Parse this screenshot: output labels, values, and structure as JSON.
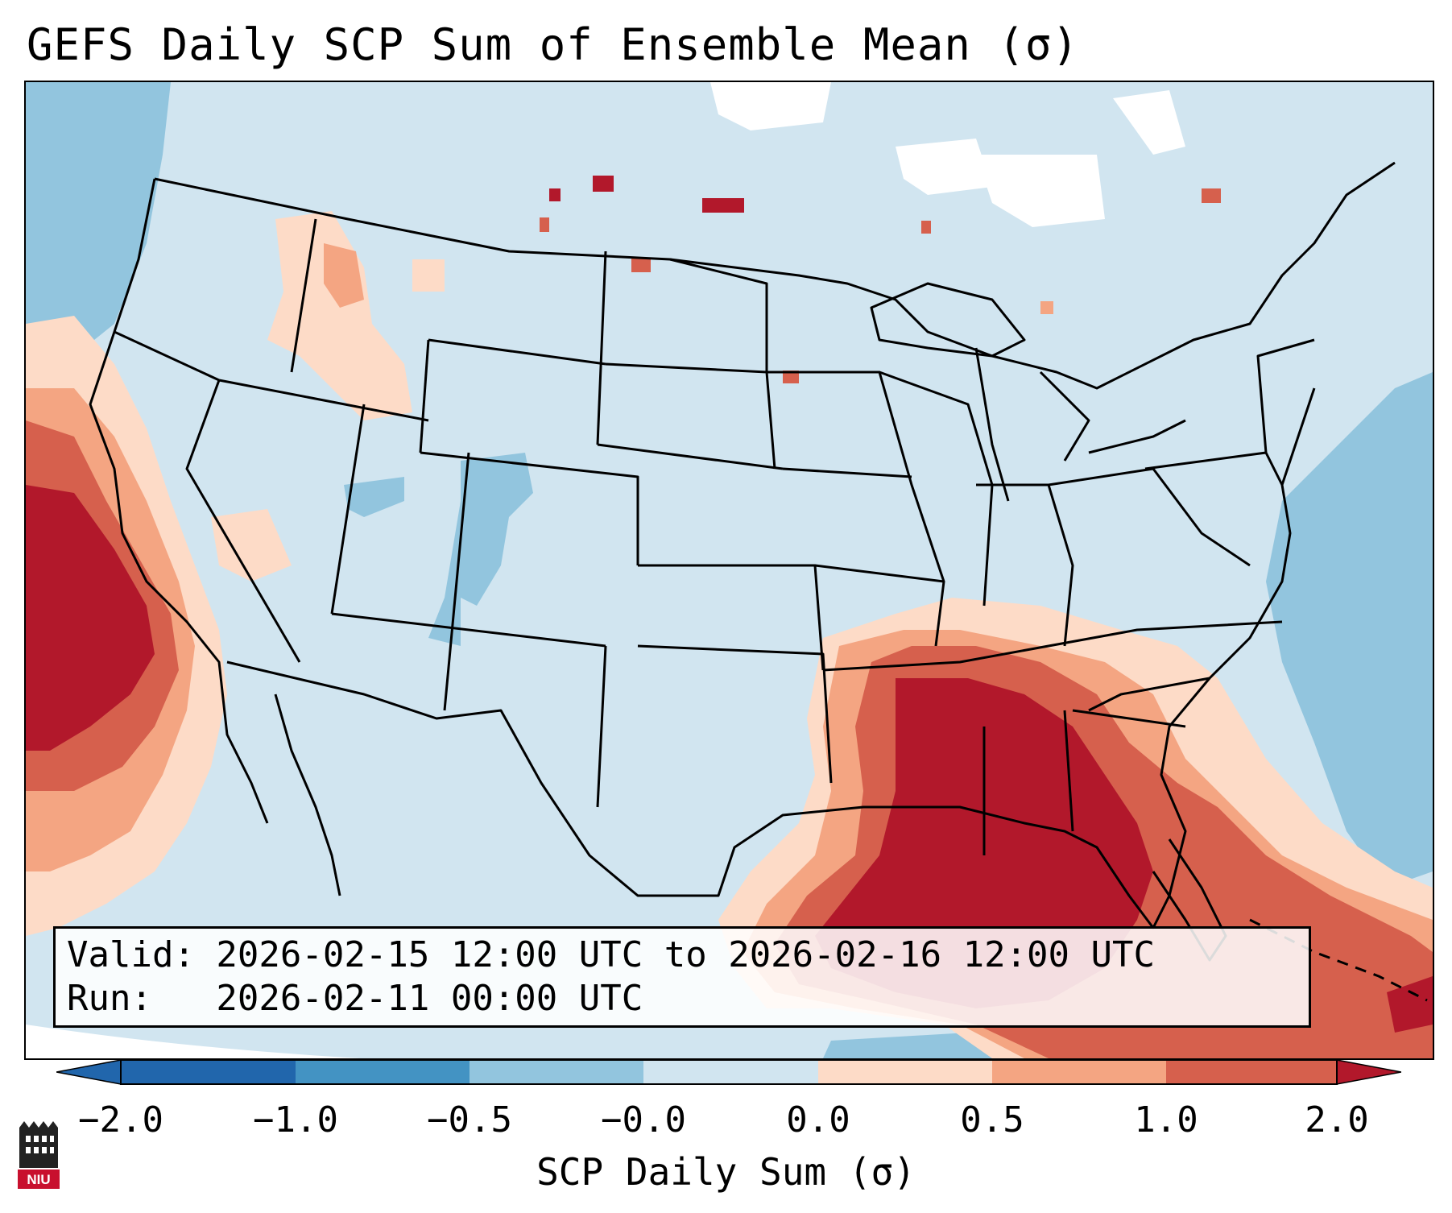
{
  "title": "GEFS Daily SCP Sum of Ensemble Mean (σ)",
  "info": {
    "valid": "Valid: 2026-02-15 12:00 UTC to 2026-02-16 12:00 UTC",
    "run": "Run:   2026-02-11 00:00 UTC"
  },
  "colorbar": {
    "label": "SCP Daily Sum (σ)",
    "ticks": [
      "−2.0",
      "−1.0",
      "−0.5",
      "−0.0",
      "0.0",
      "0.5",
      "1.0",
      "2.0"
    ],
    "colors": [
      "#4393c3",
      "#92c5de",
      "#d1e5f0",
      "#f7f7f7",
      "#fddbc7",
      "#f4a582",
      "#d6604d",
      "#b2182b"
    ],
    "extend_low_color": "#2166ac",
    "extend_high_color": "#b2182b"
  },
  "legend": {
    "swatch_colors": [
      "#2166ac",
      "#4393c3",
      "#92c5de",
      "#d1e5f0",
      "#fddbc7",
      "#f4a582",
      "#d6604d",
      "#b2182b"
    ]
  },
  "logo": {
    "text": "NIU"
  }
}
